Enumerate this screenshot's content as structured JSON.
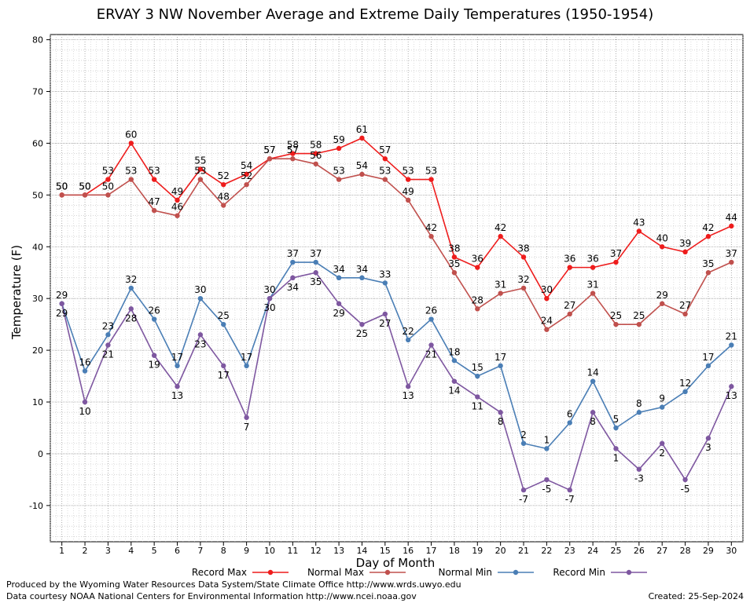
{
  "chart_data": {
    "type": "line",
    "title": "ERVAY 3 NW November Average and Extreme Daily Temperatures (1950-1954)",
    "xlabel": "Day of Month",
    "ylabel": "Temperature (F)",
    "x": [
      1,
      2,
      3,
      4,
      5,
      6,
      7,
      8,
      9,
      10,
      11,
      12,
      13,
      14,
      15,
      16,
      17,
      18,
      19,
      20,
      21,
      22,
      23,
      24,
      25,
      26,
      27,
      28,
      29,
      30
    ],
    "xlim": [
      0.5,
      30.5
    ],
    "ylim": [
      -17,
      81
    ],
    "yticks": [
      -10,
      0,
      10,
      20,
      30,
      40,
      50,
      60,
      70,
      80
    ],
    "grid": true,
    "legend_position": "bottom",
    "series": [
      {
        "name": "Record Max",
        "color": "#ee1c1c",
        "label_position": "above",
        "values": [
          50,
          50,
          53,
          60,
          53,
          49,
          55,
          52,
          54,
          57,
          58,
          58,
          59,
          61,
          57,
          53,
          53,
          38,
          36,
          42,
          38,
          30,
          36,
          36,
          37,
          43,
          40,
          39,
          42,
          44
        ]
      },
      {
        "name": "Normal Max",
        "color": "#c0504d",
        "label_position": "above",
        "values": [
          50,
          50,
          50,
          53,
          47,
          46,
          53,
          48,
          52,
          57,
          57,
          56,
          53,
          54,
          53,
          49,
          42,
          35,
          28,
          31,
          32,
          24,
          27,
          31,
          25,
          25,
          29,
          27,
          35,
          37
        ]
      },
      {
        "name": "Normal Min",
        "color": "#4a7eb5",
        "label_position": "above",
        "values": [
          29,
          16,
          23,
          32,
          26,
          17,
          30,
          25,
          17,
          30,
          37,
          37,
          34,
          34,
          33,
          22,
          26,
          18,
          15,
          17,
          2,
          1,
          6,
          14,
          5,
          8,
          9,
          12,
          17,
          21
        ]
      },
      {
        "name": "Record Min",
        "color": "#7e57a0",
        "label_position": "below",
        "values": [
          29,
          10,
          21,
          28,
          19,
          13,
          23,
          17,
          7,
          30,
          34,
          35,
          29,
          25,
          27,
          13,
          21,
          14,
          11,
          8,
          -7,
          -5,
          -7,
          8,
          1,
          -3,
          2,
          -5,
          3,
          13
        ]
      }
    ]
  },
  "footer": {
    "credit_line1": "Produced by the Wyoming Water Resources Data System/State Climate Office http://www.wrds.uwyo.edu",
    "credit_line2": "Data courtesy NOAA National Centers for Environmental Information http://www.ncei.noaa.gov",
    "created": "Created:  25-Sep-2024"
  }
}
